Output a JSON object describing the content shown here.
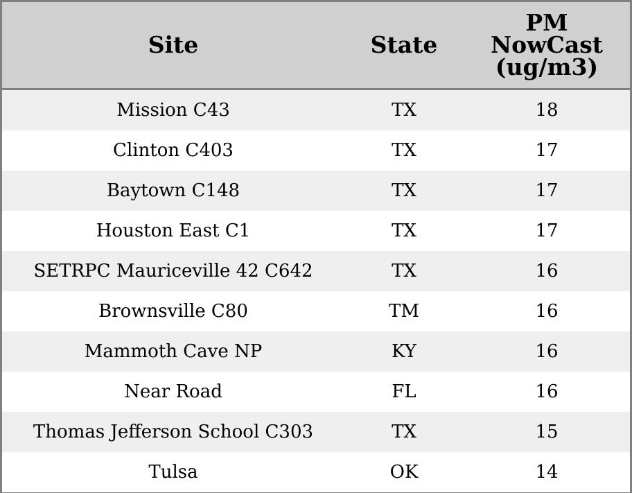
{
  "chart_data": {
    "type": "table",
    "columns": [
      "Site",
      "State",
      "PM NowCast (ug/m3)"
    ],
    "header_lines": {
      "value": [
        "PM",
        "NowCast",
        "(ug/m3)"
      ]
    },
    "rows": [
      {
        "site": "Mission C43",
        "state": "TX",
        "value": 18
      },
      {
        "site": "Clinton C403",
        "state": "TX",
        "value": 17
      },
      {
        "site": "Baytown C148",
        "state": "TX",
        "value": 17
      },
      {
        "site": "Houston East C1",
        "state": "TX",
        "value": 17
      },
      {
        "site": "SETRPC Mauriceville 42 C642",
        "state": "TX",
        "value": 16
      },
      {
        "site": "Brownsville C80",
        "state": "TM",
        "value": 16
      },
      {
        "site": "Mammoth Cave NP",
        "state": "KY",
        "value": 16
      },
      {
        "site": "Near Road",
        "state": "FL",
        "value": 16
      },
      {
        "site": "Thomas Jefferson School C303",
        "state": "TX",
        "value": 15
      },
      {
        "site": "Tulsa",
        "state": "OK",
        "value": 14
      }
    ]
  },
  "colors": {
    "header_bg": "#d0d0d0",
    "odd_row_bg": "#efefef",
    "even_row_bg": "#ffffff",
    "border": "#808080"
  }
}
